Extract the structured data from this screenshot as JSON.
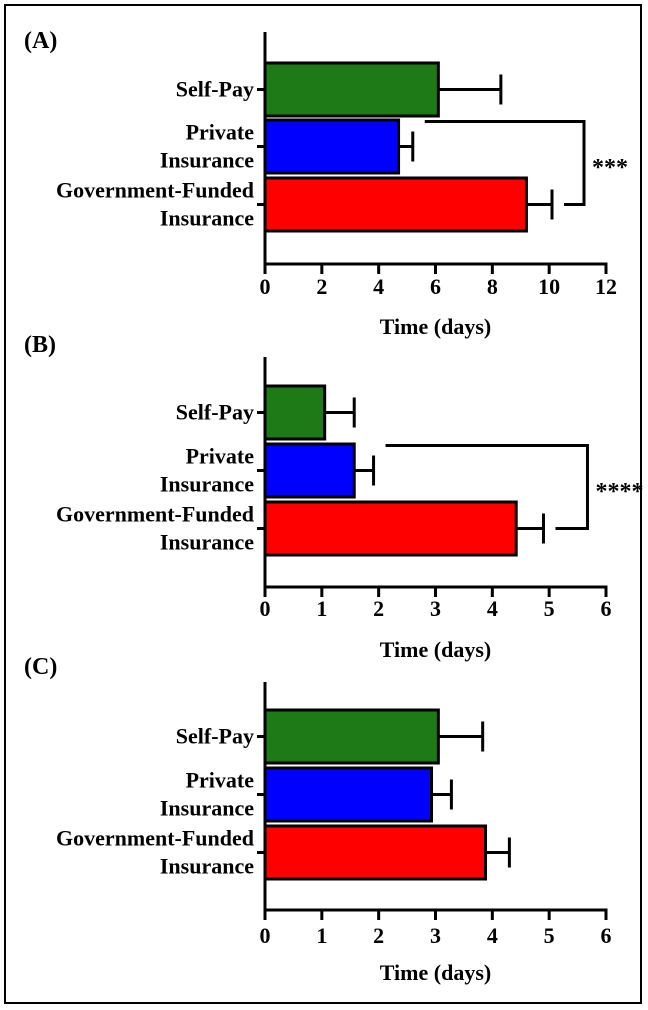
{
  "chart_data": [
    {
      "type": "bar",
      "orientation": "horizontal",
      "panel_label": "(A)",
      "categories": [
        [
          "Self-Pay"
        ],
        [
          "Private",
          "Insurance"
        ],
        [
          "Government-Funded",
          "Insurance"
        ]
      ],
      "values": [
        6.1,
        4.7,
        9.2
      ],
      "errors": [
        2.2,
        0.5,
        0.9
      ],
      "colors": [
        "#1d7a17",
        "#0000ff",
        "#ff0000"
      ],
      "xlabel": "Time (days)",
      "xlim": [
        0,
        12
      ],
      "xticks": [
        0,
        2,
        4,
        6,
        8,
        10,
        12
      ],
      "significance": {
        "from": 1,
        "to": 2,
        "label": "***"
      },
      "grid": false
    },
    {
      "type": "bar",
      "orientation": "horizontal",
      "panel_label": "(B)",
      "categories": [
        [
          "Self-Pay"
        ],
        [
          "Private",
          "Insurance"
        ],
        [
          "Government-Funded",
          "Insurance"
        ]
      ],
      "values": [
        1.05,
        1.57,
        4.42
      ],
      "errors": [
        0.52,
        0.34,
        0.48
      ],
      "colors": [
        "#1d7a17",
        "#0000ff",
        "#ff0000"
      ],
      "xlabel": "Time (days)",
      "xlim": [
        0,
        6
      ],
      "xticks": [
        0,
        1,
        2,
        3,
        4,
        5,
        6
      ],
      "significance": {
        "from": 1,
        "to": 2,
        "label": "****"
      },
      "grid": false
    },
    {
      "type": "bar",
      "orientation": "horizontal",
      "panel_label": "(C)",
      "categories": [
        [
          "Self-Pay"
        ],
        [
          "Private",
          "Insurance"
        ],
        [
          "Government-Funded",
          "Insurance"
        ]
      ],
      "values": [
        3.05,
        2.93,
        3.88
      ],
      "errors": [
        0.78,
        0.35,
        0.42
      ],
      "colors": [
        "#1d7a17",
        "#0000ff",
        "#ff0000"
      ],
      "xlabel": "Time (days)",
      "xlim": [
        0,
        6
      ],
      "xticks": [
        0,
        1,
        2,
        3,
        4,
        5,
        6
      ],
      "significance": null,
      "grid": false
    }
  ]
}
